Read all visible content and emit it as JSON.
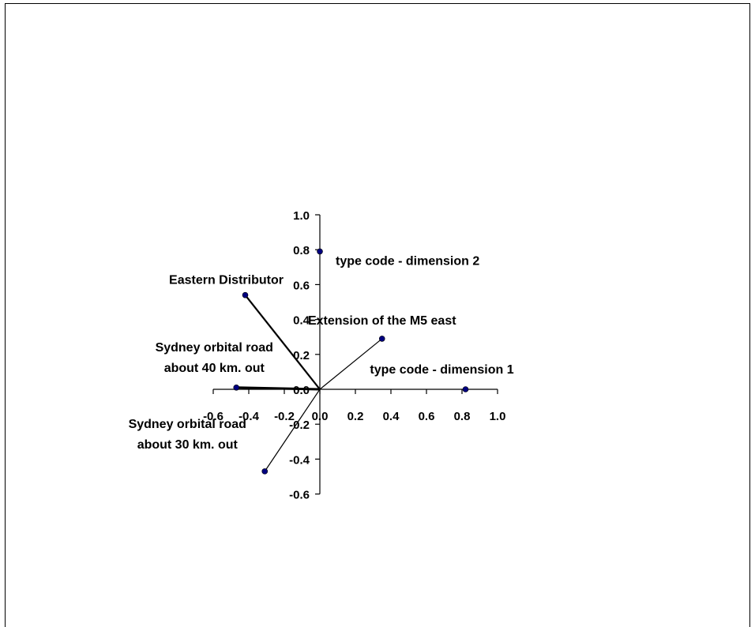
{
  "chart_data": {
    "type": "scatter",
    "title": "",
    "xlabel": "",
    "ylabel": "",
    "xlim": [
      -0.6,
      1.0
    ],
    "ylim": [
      -0.6,
      1.0
    ],
    "x_ticks": [
      "-0.6",
      "-0.4",
      "-0.2",
      "0.0",
      "0.2",
      "0.4",
      "0.6",
      "0.8",
      "1.0"
    ],
    "y_ticks": [
      "1.0",
      "0.8",
      "0.6",
      "0.4",
      "0.2",
      "0.0",
      "-0.2",
      "-0.4",
      "-0.6"
    ],
    "grid": false,
    "marker_color": "#000080",
    "points": [
      {
        "label": "type code - dimension 2",
        "x": 0.0,
        "y": 0.79,
        "vector": false
      },
      {
        "label": "Eastern Distributor",
        "x": -0.42,
        "y": 0.54,
        "vector": true
      },
      {
        "label": "Extension of the M5 east",
        "x": 0.35,
        "y": 0.29,
        "vector": true
      },
      {
        "label": "Sydney orbital road\nabout 40 km. out",
        "x": -0.47,
        "y": 0.01,
        "vector": true
      },
      {
        "label": "type code - dimension 1",
        "x": 0.82,
        "y": 0.0,
        "vector": false
      },
      {
        "label": "Sydney orbital road\nabout 30 km. out",
        "x": -0.31,
        "y": -0.47,
        "vector": true
      }
    ]
  }
}
